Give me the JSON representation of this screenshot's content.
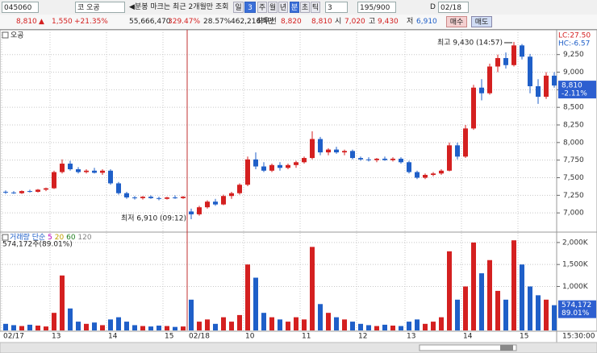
{
  "toolbar": {
    "code": "045060",
    "name": "코 오공",
    "notice": "◀분봉 마크는 최근 2개월만 조회",
    "period_day": "일",
    "day_count": "3",
    "period_week": "주",
    "period_month": "월",
    "period_year": "년",
    "period_minute": "분",
    "period_second": "초",
    "period_tick": "틱",
    "minute_count": "3",
    "count": "195/900",
    "d_label": "D",
    "date": "02/18"
  },
  "quote": {
    "price": "8,810",
    "arrow": "▲",
    "change": "1,550",
    "change_rate": "+21.35%",
    "volume": "55,666,470",
    "volume_ratio": "329.47%",
    "turnover": "28.57%",
    "amount": "462,216백만",
    "best_label": "최우선",
    "ask": "8,820",
    "bid": "8,810",
    "open_label": "시",
    "open": "7,020",
    "high_label": "고",
    "high": "9,430",
    "low_label": "저",
    "low": "6,910",
    "buy": "매수",
    "sell": "매도"
  },
  "chart_data": [
    {
      "type": "candlestick",
      "title": "오공",
      "up_color": "#d42020",
      "down_color": "#1f5fc8",
      "categories": [
        "02/17",
        null,
        null,
        null,
        null,
        null,
        "13",
        null,
        null,
        null,
        null,
        null,
        null,
        "14",
        null,
        null,
        null,
        null,
        null,
        null,
        "15",
        null,
        null,
        "02/18",
        null,
        null,
        null,
        null,
        null,
        null,
        "10",
        null,
        null,
        null,
        null,
        null,
        null,
        "11",
        null,
        null,
        null,
        null,
        null,
        null,
        "12",
        null,
        null,
        null,
        null,
        null,
        "13",
        null,
        null,
        null,
        null,
        null,
        null,
        "14",
        null,
        null,
        null,
        null,
        null,
        null,
        "15",
        null,
        null,
        null,
        null
      ],
      "open": [
        7300,
        7290,
        7280,
        7310,
        7300,
        7330,
        7350,
        7580,
        7700,
        7620,
        7580,
        7600,
        7570,
        7600,
        7420,
        7280,
        7220,
        7210,
        7230,
        7210,
        7200,
        7220,
        7210,
        7020,
        6980,
        7080,
        7160,
        7120,
        7240,
        7280,
        7400,
        7760,
        7660,
        7600,
        7680,
        7640,
        7680,
        7720,
        7780,
        8050,
        7860,
        7900,
        7860,
        7880,
        7780,
        7760,
        7750,
        7770,
        7750,
        7770,
        7720,
        7580,
        7500,
        7540,
        7560,
        7600,
        7960,
        7800,
        8200,
        8780,
        8700,
        9080,
        9200,
        9100,
        9380,
        9220,
        8800,
        8650,
        8950
      ],
      "high": [
        7320,
        7310,
        7320,
        7330,
        7340,
        7360,
        7600,
        7760,
        7740,
        7650,
        7620,
        7640,
        7620,
        7620,
        7440,
        7300,
        7240,
        7240,
        7250,
        7230,
        7230,
        7250,
        7240,
        7060,
        7100,
        7180,
        7200,
        7260,
        7300,
        7420,
        7800,
        7860,
        7720,
        7700,
        7720,
        7700,
        7740,
        7800,
        8160,
        8080,
        7920,
        7940,
        7900,
        7900,
        7800,
        7790,
        7780,
        7800,
        7790,
        7790,
        7740,
        7600,
        7560,
        7580,
        7620,
        8000,
        8000,
        8250,
        8820,
        8900,
        9120,
        9250,
        9280,
        9430,
        9400,
        9260,
        8900,
        9000,
        9000
      ],
      "low": [
        7270,
        7270,
        7270,
        7290,
        7290,
        7310,
        7340,
        7560,
        7600,
        7560,
        7560,
        7560,
        7540,
        7400,
        7260,
        7200,
        7190,
        7190,
        7200,
        7180,
        7190,
        7200,
        7200,
        6910,
        6960,
        7060,
        7100,
        7110,
        7200,
        7260,
        7380,
        7620,
        7580,
        7580,
        7600,
        7620,
        7640,
        7700,
        7760,
        7820,
        7820,
        7840,
        7820,
        7760,
        7740,
        7730,
        7720,
        7740,
        7730,
        7700,
        7560,
        7480,
        7480,
        7520,
        7540,
        7590,
        7760,
        7780,
        8180,
        8600,
        8680,
        9000,
        9050,
        9080,
        9180,
        8700,
        8550,
        8620,
        8780
      ],
      "close": [
        7290,
        7280,
        7310,
        7300,
        7330,
        7350,
        7580,
        7700,
        7620,
        7580,
        7600,
        7570,
        7600,
        7420,
        7280,
        7220,
        7210,
        7230,
        7210,
        7200,
        7220,
        7210,
        7230,
        6980,
        7080,
        7160,
        7120,
        7240,
        7280,
        7400,
        7760,
        7660,
        7600,
        7680,
        7640,
        7680,
        7720,
        7780,
        8050,
        7860,
        7900,
        7860,
        7880,
        7780,
        7760,
        7750,
        7770,
        7750,
        7770,
        7720,
        7580,
        7500,
        7540,
        7560,
        7600,
        7960,
        7800,
        8200,
        8780,
        8700,
        9080,
        9200,
        9100,
        9380,
        9220,
        8800,
        8650,
        8950,
        8810
      ],
      "ylim": [
        6750,
        9590
      ],
      "yticks": [
        {
          "value": 7000,
          "label": "7,000"
        },
        {
          "value": 7250,
          "label": "7,250"
        },
        {
          "value": 7500,
          "label": "7,500"
        },
        {
          "value": 7750,
          "label": "7,750"
        },
        {
          "value": 8000,
          "label": "8,000"
        },
        {
          "value": 8250,
          "label": "8,250"
        },
        {
          "value": 8500,
          "label": "8,500"
        },
        {
          "value": 8750,
          "label": "8,750"
        },
        {
          "value": 9000,
          "label": "9,000"
        },
        {
          "value": 9250,
          "label": "9,250"
        }
      ],
      "grid": true,
      "high_annotation": "최고 9,430 (14:57)",
      "low_annotation": "최저 6,910 (09:12)",
      "lc_label": "LC:27.50",
      "hc_label": "HC:-6.57",
      "last_label": "8,810",
      "last_change": "-2.11%",
      "time_label": "15:30:00"
    },
    {
      "type": "bar",
      "title": "거래량",
      "ma_label": "단순",
      "ma_periods": [
        5,
        20,
        60,
        120
      ],
      "ma_colors": [
        "#c000c0",
        "#c0a000",
        "#208020",
        "#808080"
      ],
      "subtitle": "574,172주(89.01%)",
      "values": [
        150000,
        120000,
        100000,
        130000,
        110000,
        90000,
        400000,
        1250000,
        500000,
        200000,
        150000,
        180000,
        120000,
        250000,
        300000,
        200000,
        120000,
        100000,
        90000,
        110000,
        100000,
        80000,
        90000,
        700000,
        200000,
        250000,
        150000,
        300000,
        200000,
        350000,
        1500000,
        1200000,
        400000,
        300000,
        250000,
        200000,
        300000,
        250000,
        1900000,
        600000,
        400000,
        300000,
        250000,
        200000,
        150000,
        120000,
        100000,
        130000,
        110000,
        100000,
        200000,
        250000,
        150000,
        200000,
        300000,
        1800000,
        700000,
        1000000,
        2000000,
        1300000,
        1600000,
        900000,
        700000,
        2050000,
        1500000,
        1000000,
        800000,
        700000,
        574172
      ],
      "ylim": [
        0,
        2200000
      ],
      "yticks": [
        {
          "value": 1000000,
          "label": "1,000K"
        },
        {
          "value": 1500000,
          "label": "1,500K"
        },
        {
          "value": 2000000,
          "label": "2,000K"
        }
      ],
      "grid": true,
      "last_label": "574,172",
      "last_ratio": "89.01%"
    }
  ]
}
